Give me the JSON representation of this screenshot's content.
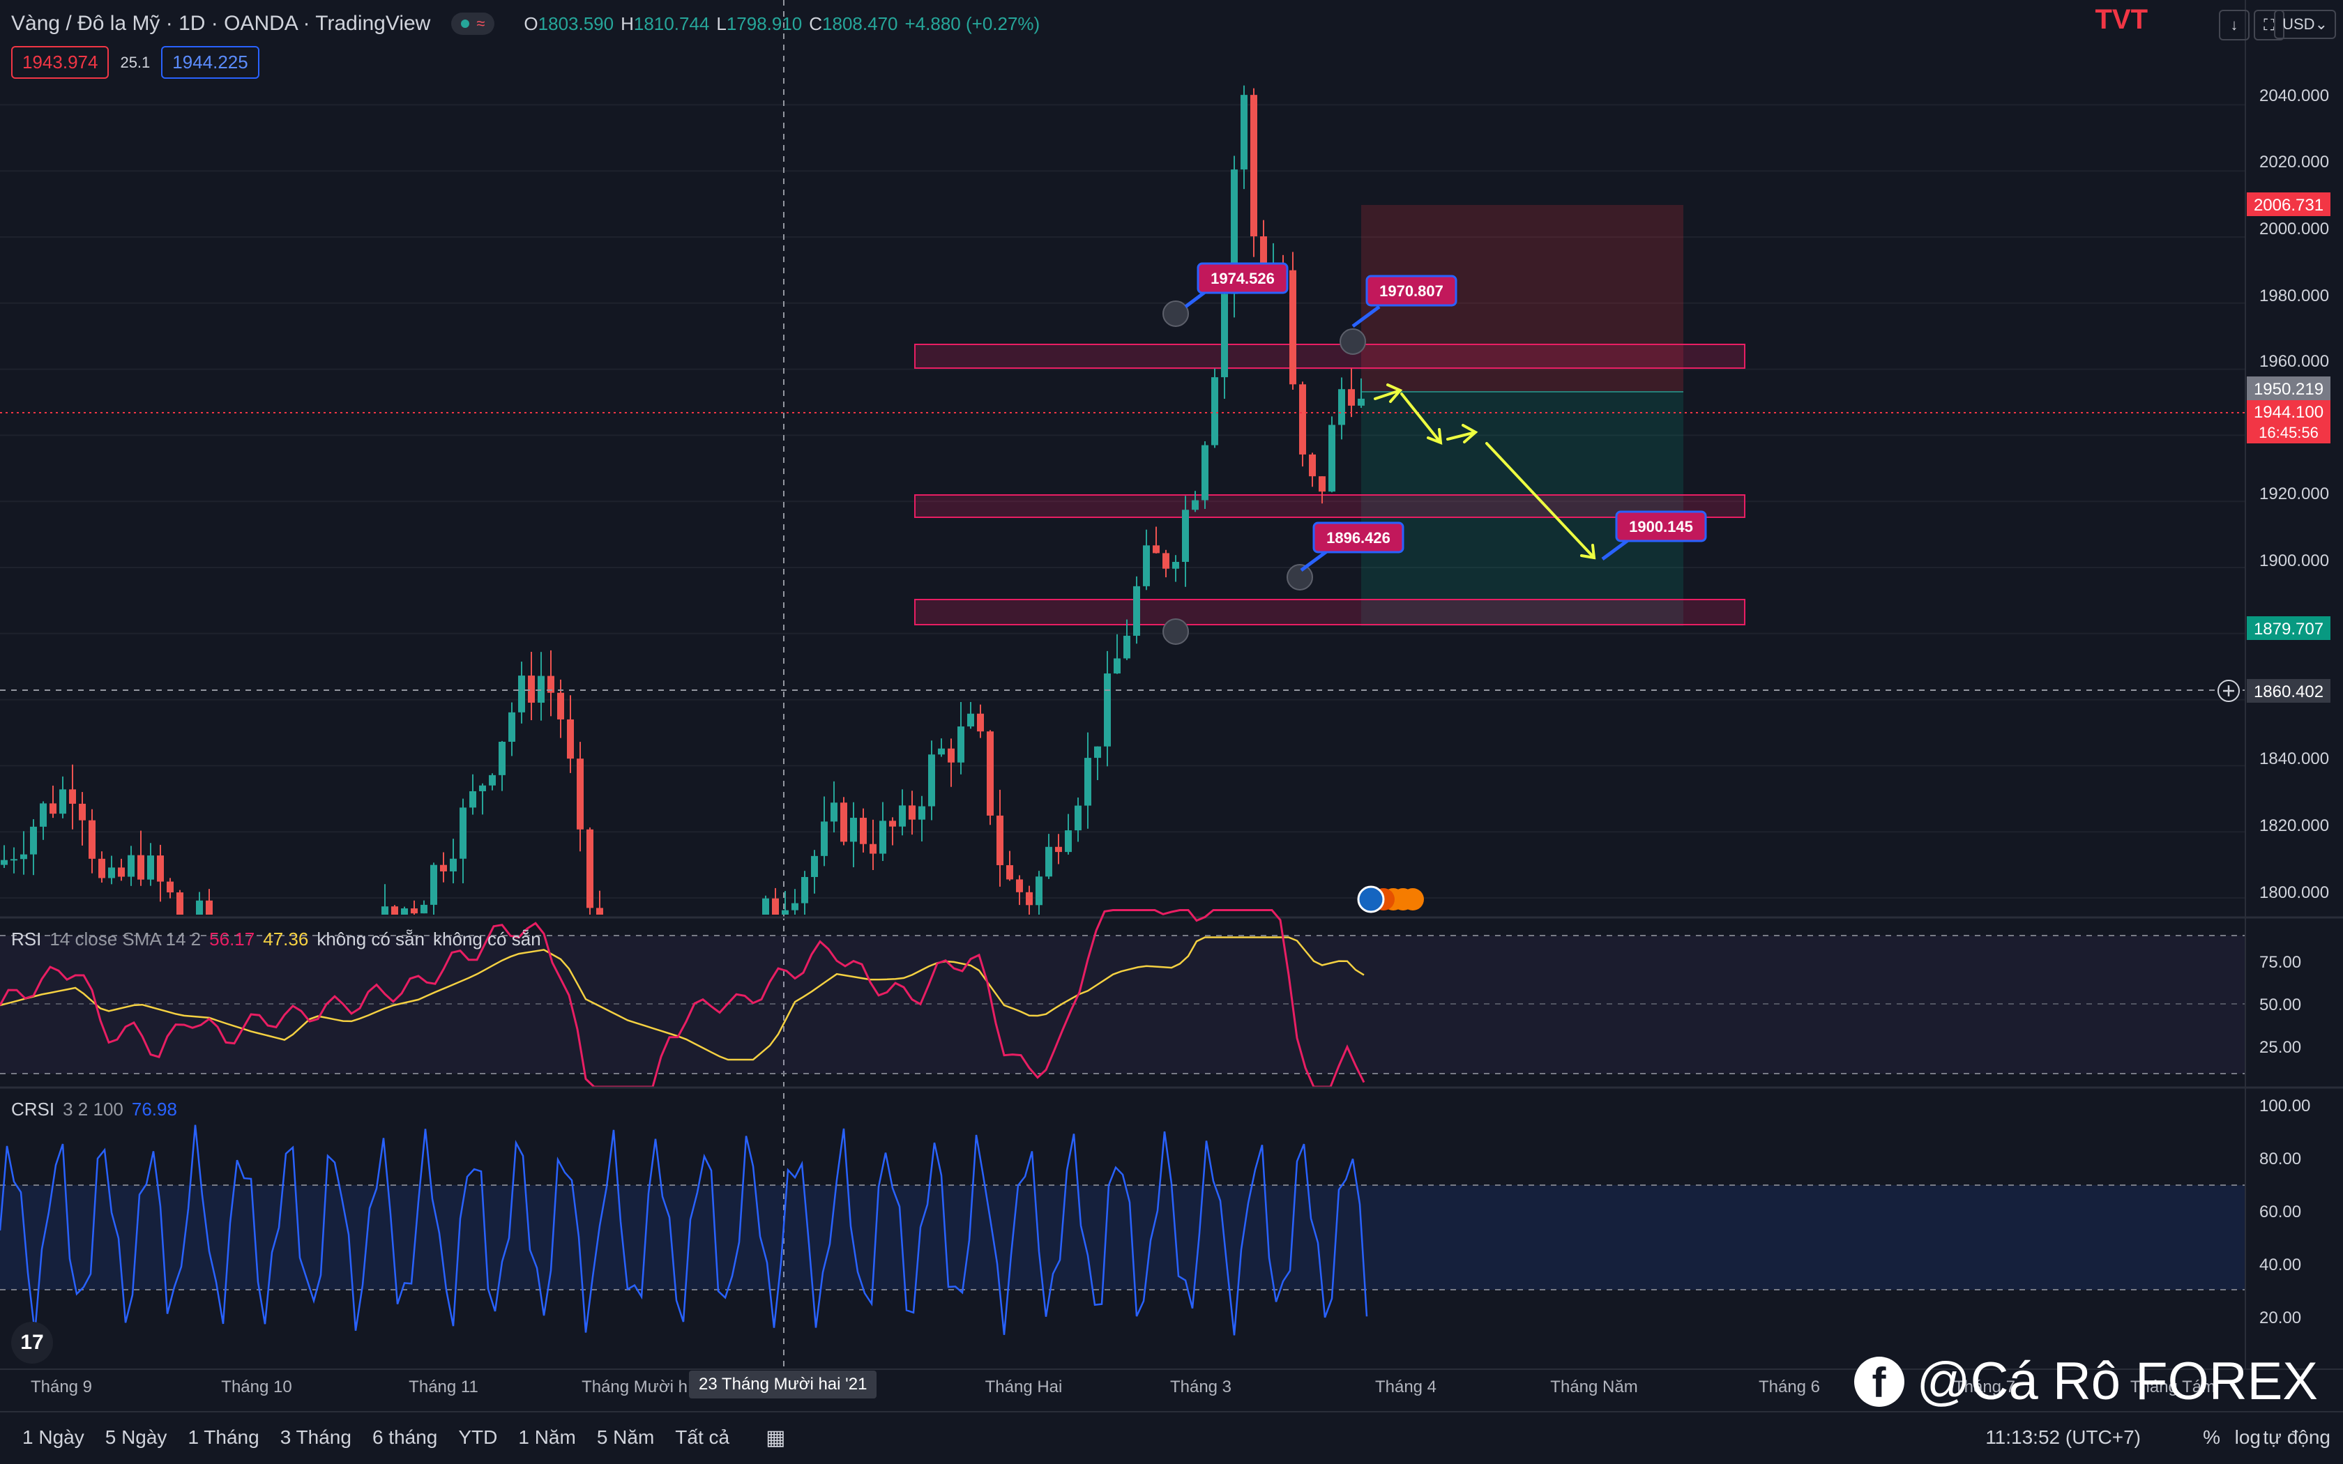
{
  "header": {
    "symbol": "Vàng / Đô la Mỹ · 1D · OANDA · TradingView",
    "wave_icon": "≈",
    "ohlc": {
      "o_label": "O",
      "o": "1803.590",
      "h_label": "H",
      "h": "1810.744",
      "l_label": "L",
      "l": "1798.910",
      "c_label": "C",
      "c": "1808.470",
      "change": "+4.880 (+0.27%)"
    },
    "sell_price": "1943.974",
    "spread": "25.1",
    "buy_price": "1944.225",
    "logo_text": "TVT",
    "currency": "USD"
  },
  "price_axis": {
    "ticks": [
      "2040.000",
      "2020.000",
      "2000.000",
      "1980.000",
      "1960.000",
      "1920.000",
      "1900.000",
      "1840.000",
      "1820.000",
      "1800.000"
    ],
    "tags": {
      "stop_loss": "2006.731",
      "entry": "1950.219",
      "current": "1944.100",
      "countdown": "16:45:56",
      "take_profit": "1879.707",
      "crosshair": "1860.402"
    }
  },
  "annotations": [
    "1974.526",
    "1970.807",
    "1896.426",
    "1900.145"
  ],
  "rsi": {
    "title": "RSI",
    "params": "14 close SMA 14 2",
    "value": "56.17",
    "sma": "47.36",
    "na1": "không có sẵn",
    "na2": "không có sẵn",
    "ticks": [
      "75.00",
      "50.00",
      "25.00"
    ]
  },
  "crsi": {
    "title": "CRSI",
    "params": "3 2 100",
    "value": "76.98",
    "ticks": [
      "100.00",
      "80.00",
      "60.00",
      "40.00",
      "20.00"
    ]
  },
  "time_axis": {
    "labels": [
      "Tháng 9",
      "Tháng 10",
      "Tháng 11",
      "Tháng Mười h",
      "Tháng Hai",
      "Tháng 3",
      "Tháng 4",
      "Tháng Năm",
      "Tháng 6",
      "Tháng 7",
      "Tháng Tám"
    ],
    "crosshair": "23 Tháng Mười hai '21"
  },
  "bottom_bar": {
    "ranges": [
      "1 Ngày",
      "5 Ngày",
      "1 Tháng",
      "3 Tháng",
      "6 tháng",
      "YTD",
      "1 Năm",
      "5 Năm",
      "Tất cả"
    ],
    "time": "11:13:52 (UTC+7)",
    "percent": "%",
    "log": "log",
    "auto": "tự động"
  },
  "watermark": "@Cá Rô FOREX",
  "colors": {
    "bg": "#131722",
    "up": "#26a69a",
    "down": "#ef5350",
    "zone": "#e91e63",
    "rsi_line": "#e91e63",
    "rsi_sma": "#f5d142",
    "crsi_line": "#2962ff",
    "arrow": "#eeff41"
  }
}
